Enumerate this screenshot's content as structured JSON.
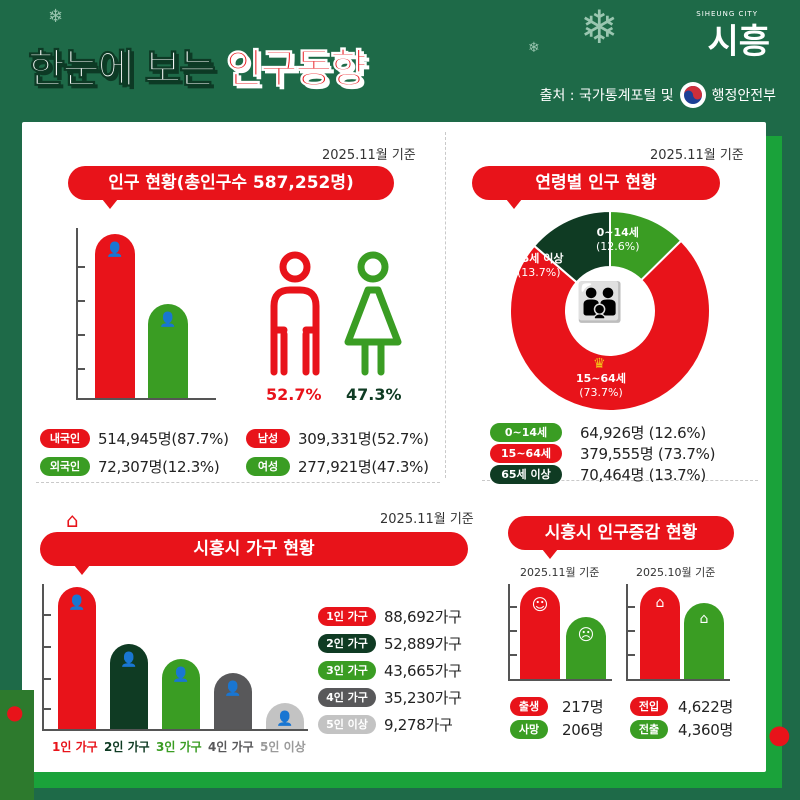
{
  "header": {
    "title_white": "한눈에 보는",
    "title_red": "인구동향",
    "logo_small": "SIHEUNG CITY",
    "logo_big": "시흥",
    "source": "출처 : 국가통계포털 및",
    "source_org": "행정안전부"
  },
  "population": {
    "date": "2025.11월 기준",
    "title": "인구 현황(총인구수 587,252명)",
    "rows": [
      {
        "label": "내국인",
        "value": "514,945명(87.7%)",
        "share": 0.877
      },
      {
        "label": "외국인",
        "value": "72,307명(12.3%)",
        "share": 0.123
      }
    ],
    "gender": [
      {
        "label": "남성",
        "value": "309,331명(52.7%)",
        "pct": "52.7%"
      },
      {
        "label": "여성",
        "value": "277,921명(47.3%)",
        "pct": "47.3%"
      }
    ]
  },
  "age": {
    "date": "2025.11월 기준",
    "title": "연령별 인구 현황",
    "groups": [
      {
        "label": "0~14세",
        "pct_label": "(12.6%)",
        "value": "64,926명 (12.6%)",
        "share": 0.126,
        "color": "#3a9d23"
      },
      {
        "label": "15~64세",
        "pct_label": "(73.7%)",
        "value": "379,555명 (73.7%)",
        "share": 0.737,
        "color": "#e8131a"
      },
      {
        "label": "65세 이상",
        "pct_label": "(13.7%)",
        "value": "70,464명 (13.7%)",
        "share": 0.137,
        "color": "#0f3b23"
      }
    ]
  },
  "households": {
    "date": "2025.11월 기준",
    "title": "시흥시 가구 현황",
    "items": [
      {
        "tag": "1인 가구",
        "axis_label": "1인 가구",
        "value": "88,692가구",
        "count": 88692,
        "color": "#e8131a"
      },
      {
        "tag": "2인 가구",
        "axis_label": "2인 가구",
        "value": "52,889가구",
        "count": 52889,
        "color": "#0f3b23"
      },
      {
        "tag": "3인 가구",
        "axis_label": "3인 가구",
        "value": "43,665가구",
        "count": 43665,
        "color": "#3a9d23"
      },
      {
        "tag": "4인 가구",
        "axis_label": "4인 가구",
        "value": "35,230가구",
        "count": 35230,
        "color": "#58585a"
      },
      {
        "tag": "5인 이상",
        "axis_label": "5인 이상",
        "value": "9,278가구",
        "count": 9278,
        "color": "#c3c3c3"
      }
    ]
  },
  "change": {
    "title": "시흥시 인구증감 현황",
    "natural": {
      "date": "2025.11월 기준",
      "rows": [
        {
          "label": "출생",
          "value": "217명",
          "count": 217
        },
        {
          "label": "사망",
          "value": "206명",
          "count": 206
        }
      ]
    },
    "migration": {
      "date": "2025.10월 기준",
      "rows": [
        {
          "label": "전입",
          "value": "4,622명",
          "count": 4622
        },
        {
          "label": "전출",
          "value": "4,360명",
          "count": 4360
        }
      ]
    }
  }
}
